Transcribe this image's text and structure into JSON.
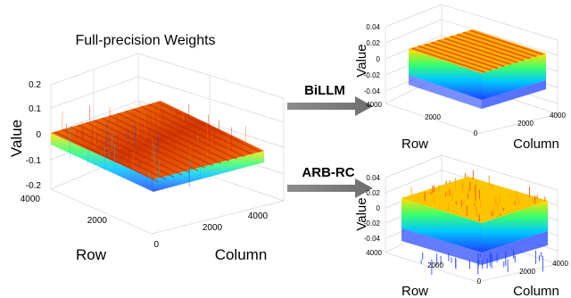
{
  "chart_data": [
    {
      "type": "surface",
      "title": "Full-precision  Weights",
      "xlabel": "Column",
      "ylabel": "Row",
      "zlabel": "Value",
      "x_ticks": [
        "0",
        "2000",
        "4000"
      ],
      "y_ticks": [
        "0",
        "2000",
        "4000"
      ],
      "z_ticks": [
        "-0.2",
        "-0.1",
        "0",
        "0.1",
        "0.2"
      ],
      "xlim": [
        0,
        4096
      ],
      "ylim": [
        0,
        4096
      ],
      "zlim": [
        -0.2,
        0.2
      ],
      "surface_range": [
        -0.15,
        0.2
      ],
      "colormap": [
        "#1f3fff",
        "#00c8ff",
        "#3dff6a",
        "#ffe100",
        "#ff6a00",
        "#c81e00"
      ],
      "grid": true
    },
    {
      "type": "surface",
      "label": "BiLLM",
      "xlabel": "Column",
      "ylabel": "Row",
      "zlabel": "Value",
      "x_ticks": [
        "0",
        "2000",
        "4000"
      ],
      "y_ticks": [
        "2000",
        "4000"
      ],
      "z_ticks": [
        "-0.04",
        "-0.02",
        "0",
        "0.02",
        "0.04"
      ],
      "xlim": [
        0,
        4096
      ],
      "ylim": [
        0,
        4096
      ],
      "zlim": [
        -0.04,
        0.04
      ],
      "surface_range": [
        -0.045,
        0.03
      ],
      "grid": true
    },
    {
      "type": "surface",
      "label": "ARB-RC",
      "xlabel": "Column",
      "ylabel": "Row",
      "zlabel": "Value",
      "x_ticks": [
        "0",
        "2000",
        "4000"
      ],
      "y_ticks": [
        "2000",
        "4000"
      ],
      "z_ticks": [
        "-0.04",
        "-0.02",
        "0",
        "0.02",
        "0.04"
      ],
      "xlim": [
        0,
        4096
      ],
      "ylim": [
        0,
        4096
      ],
      "zlim": [
        -0.04,
        0.04
      ],
      "surface_range": [
        -0.045,
        0.03
      ],
      "grid": true
    }
  ]
}
